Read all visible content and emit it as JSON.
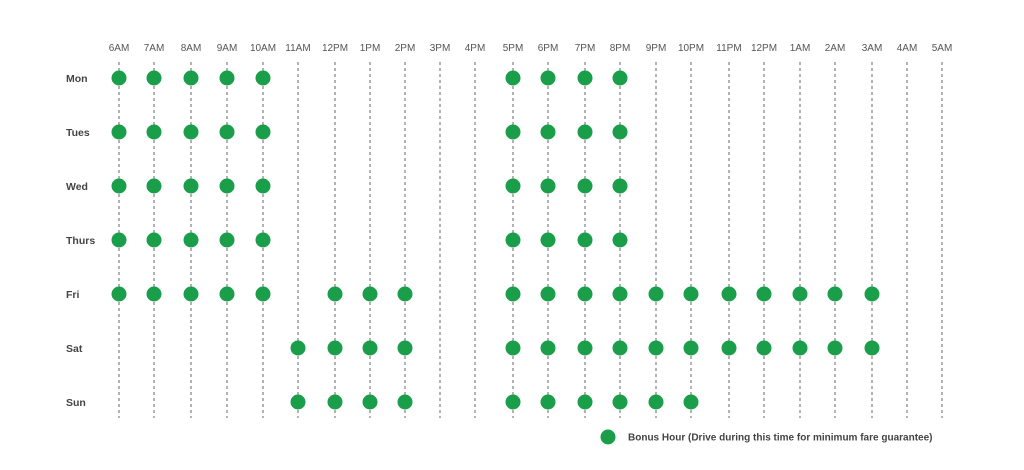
{
  "chart_data": {
    "type": "scatter",
    "x_categories": [
      "6AM",
      "7AM",
      "8AM",
      "9AM",
      "10AM",
      "11AM",
      "12PM",
      "1PM",
      "2PM",
      "3PM",
      "4PM",
      "5PM",
      "6PM",
      "7PM",
      "8PM",
      "9PM",
      "10PM",
      "11PM",
      "12PM",
      "1AM",
      "2AM",
      "3AM",
      "4AM",
      "5AM"
    ],
    "y_categories": [
      "Mon",
      "Tues",
      "Wed",
      "Thurs",
      "Fri",
      "Sat",
      "Sun"
    ],
    "series": [
      {
        "name": "Bonus Hour (Drive during this time for minimum fare guarantee)",
        "color": "#1a9e4a",
        "points": {
          "Mon": [
            "6AM",
            "7AM",
            "8AM",
            "9AM",
            "10AM",
            "5PM",
            "6PM",
            "7PM",
            "8PM"
          ],
          "Tues": [
            "6AM",
            "7AM",
            "8AM",
            "9AM",
            "10AM",
            "5PM",
            "6PM",
            "7PM",
            "8PM"
          ],
          "Wed": [
            "6AM",
            "7AM",
            "8AM",
            "9AM",
            "10AM",
            "5PM",
            "6PM",
            "7PM",
            "8PM"
          ],
          "Thurs": [
            "6AM",
            "7AM",
            "8AM",
            "9AM",
            "10AM",
            "5PM",
            "6PM",
            "7PM",
            "8PM"
          ],
          "Fri": [
            "6AM",
            "7AM",
            "8AM",
            "9AM",
            "10AM",
            "12PM",
            "1PM",
            "2PM",
            "5PM",
            "6PM",
            "7PM",
            "8PM",
            "9PM",
            "10PM",
            "11PM",
            "12PM",
            "1AM",
            "2AM",
            "3AM"
          ],
          "Sat": [
            "11AM",
            "12PM",
            "1PM",
            "2PM",
            "5PM",
            "6PM",
            "7PM",
            "8PM",
            "9PM",
            "10PM",
            "11PM",
            "12PM",
            "1AM",
            "2AM",
            "3AM"
          ],
          "Sun": [
            "11AM",
            "12PM",
            "1PM",
            "2PM",
            "5PM",
            "6PM",
            "7PM",
            "8PM",
            "9PM",
            "10PM"
          ]
        }
      }
    ],
    "grid": "vertical-dashed",
    "legend_position": "bottom-right"
  }
}
